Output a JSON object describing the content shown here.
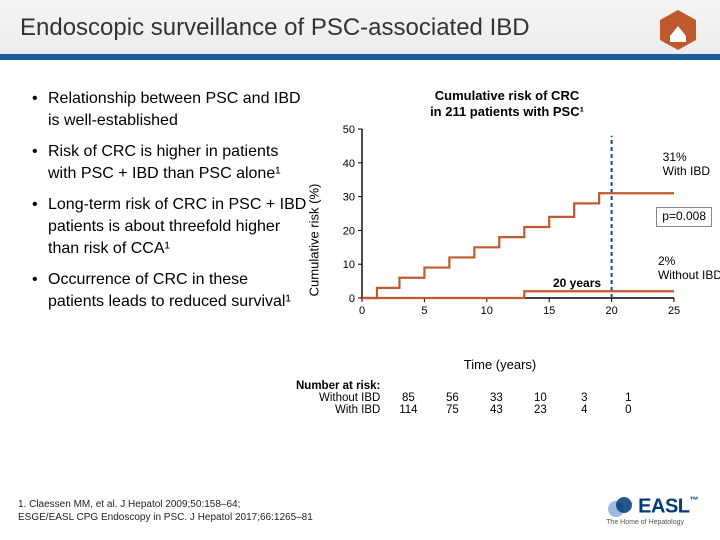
{
  "header": {
    "title": "Endoscopic surveillance of PSC-associated IBD",
    "bar_color": "#1f5a9a",
    "icon_fill": "#c1592f"
  },
  "bullets": [
    "Relationship between PSC and IBD is well-established",
    "Risk of CRC is higher in patients with PSC + IBD than PSC alone¹",
    "Long-term risk of CRC in PSC + IBD patients is about threefold higher than risk of CCA¹",
    "Occurrence of CRC in these patients leads to reduced survival¹"
  ],
  "chart": {
    "title_l1": "Cumulative risk of CRC",
    "title_l2": "in 211 patients with PSC¹",
    "ylabel": "Cumulative risk (%)",
    "xlabel": "Time (years)",
    "xlim": [
      0,
      25
    ],
    "ylim": [
      0,
      50
    ],
    "xticks": [
      0,
      5,
      10,
      15,
      20,
      25
    ],
    "yticks": [
      0,
      10,
      20,
      30,
      40,
      50
    ],
    "with_ibd": {
      "color": "#c1592f",
      "points": [
        [
          0,
          0
        ],
        [
          1.2,
          0
        ],
        [
          1.2,
          3
        ],
        [
          3,
          3
        ],
        [
          3,
          6
        ],
        [
          5,
          6
        ],
        [
          5,
          9
        ],
        [
          7,
          9
        ],
        [
          7,
          12
        ],
        [
          9,
          12
        ],
        [
          9,
          15
        ],
        [
          11,
          15
        ],
        [
          11,
          18
        ],
        [
          13,
          18
        ],
        [
          13,
          21
        ],
        [
          15,
          21
        ],
        [
          15,
          24
        ],
        [
          17,
          24
        ],
        [
          17,
          28
        ],
        [
          19,
          28
        ],
        [
          19,
          31
        ],
        [
          25,
          31
        ]
      ]
    },
    "without_ibd": {
      "color": "#c1592f",
      "points": [
        [
          0,
          0
        ],
        [
          13,
          0
        ],
        [
          13,
          2
        ],
        [
          25,
          2
        ]
      ]
    },
    "vline_x": 20,
    "vline_color": "#174a8a",
    "annotations": {
      "with_ibd_pct": "31%",
      "with_ibd_lbl": "With IBD",
      "pval": "p=0.008",
      "without_ibd_pct": "2%",
      "without_ibd_lbl": "Without IBD",
      "twenty_years": "20 years"
    },
    "number_at_risk": {
      "heading": "Number at risk:",
      "rows": [
        {
          "label": "Without IBD",
          "vals": [
            85,
            56,
            33,
            10,
            3,
            1
          ]
        },
        {
          "label": "With IBD",
          "vals": [
            114,
            75,
            43,
            23,
            4,
            0
          ]
        }
      ]
    },
    "axis_color": "#000000",
    "tick_fontsize": 11
  },
  "reference": {
    "l1": "1. Claessen MM, et al. J Hepatol 2009;50:158–64;",
    "l2": "ESGE/EASL CPG Endoscopy in PSC. J Hepatol 2017;66:1265–81"
  },
  "logo": {
    "text": "EASL",
    "sub": "The Home of Hepatology"
  }
}
